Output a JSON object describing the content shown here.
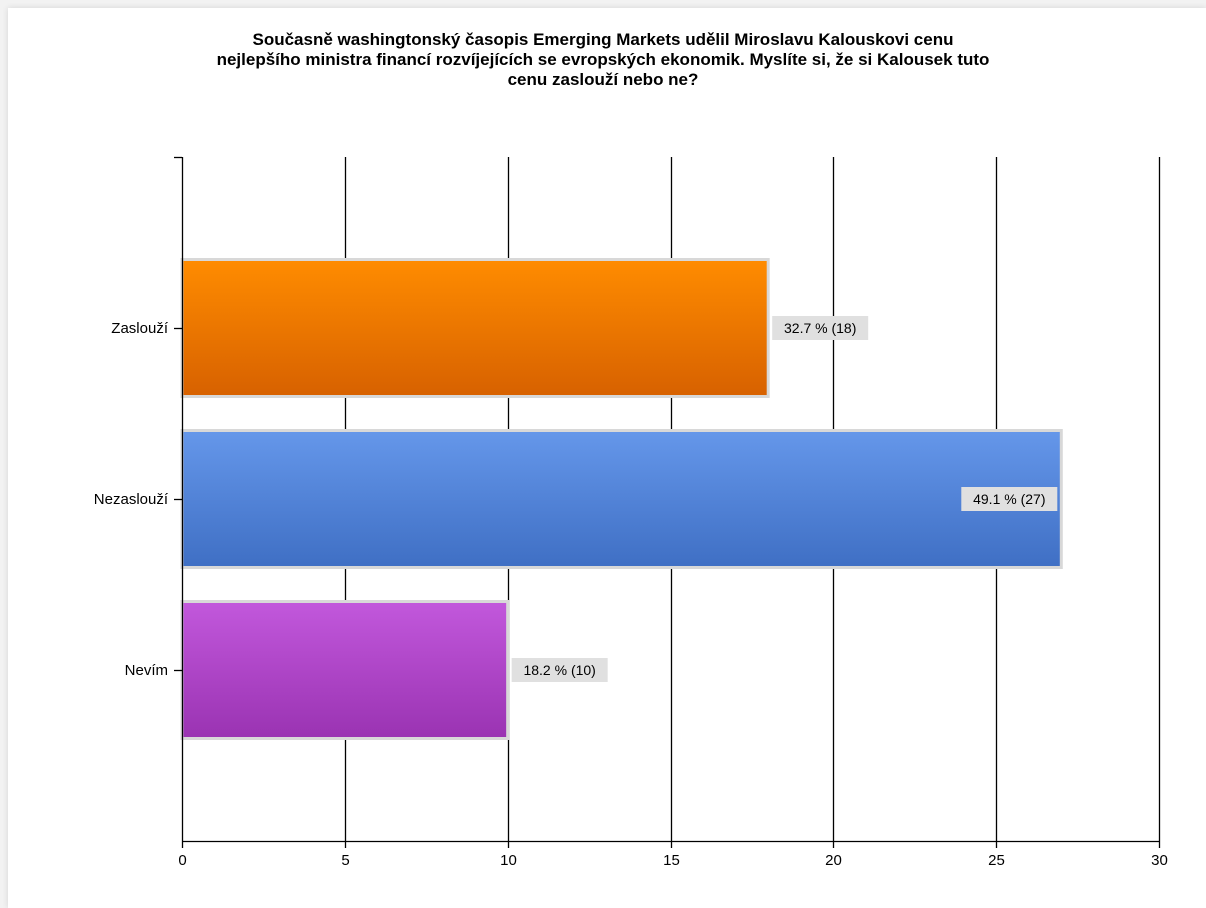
{
  "chart_data": {
    "type": "bar",
    "orientation": "horizontal",
    "title_lines": [
      "Současně washingtonský časopis Emerging Markets udělil Miroslavu Kalouskovi cenu",
      "nejlepšího ministra financí rozvíjejících se evropských ekonomik. Myslíte si, že si Kalousek tuto",
      "cenu zaslouží nebo ne?"
    ],
    "categories": [
      "Zaslouží",
      "Nezaslouží",
      "Nevím"
    ],
    "values": [
      18,
      27,
      10
    ],
    "data_labels": [
      "32.7 % (18)",
      "49.1 % (27)",
      "18.2 % (10)"
    ],
    "xlim": [
      0,
      30
    ],
    "x_ticks": [
      0,
      5,
      10,
      15,
      20,
      25,
      30
    ],
    "grid": true,
    "legend": "none",
    "colors": [
      {
        "top": "#ff8c00",
        "bottom": "#d76100"
      },
      {
        "top": "#6597ea",
        "bottom": "#3f6fc4"
      },
      {
        "top": "#c258dc",
        "bottom": "#9a33b2"
      }
    ]
  }
}
